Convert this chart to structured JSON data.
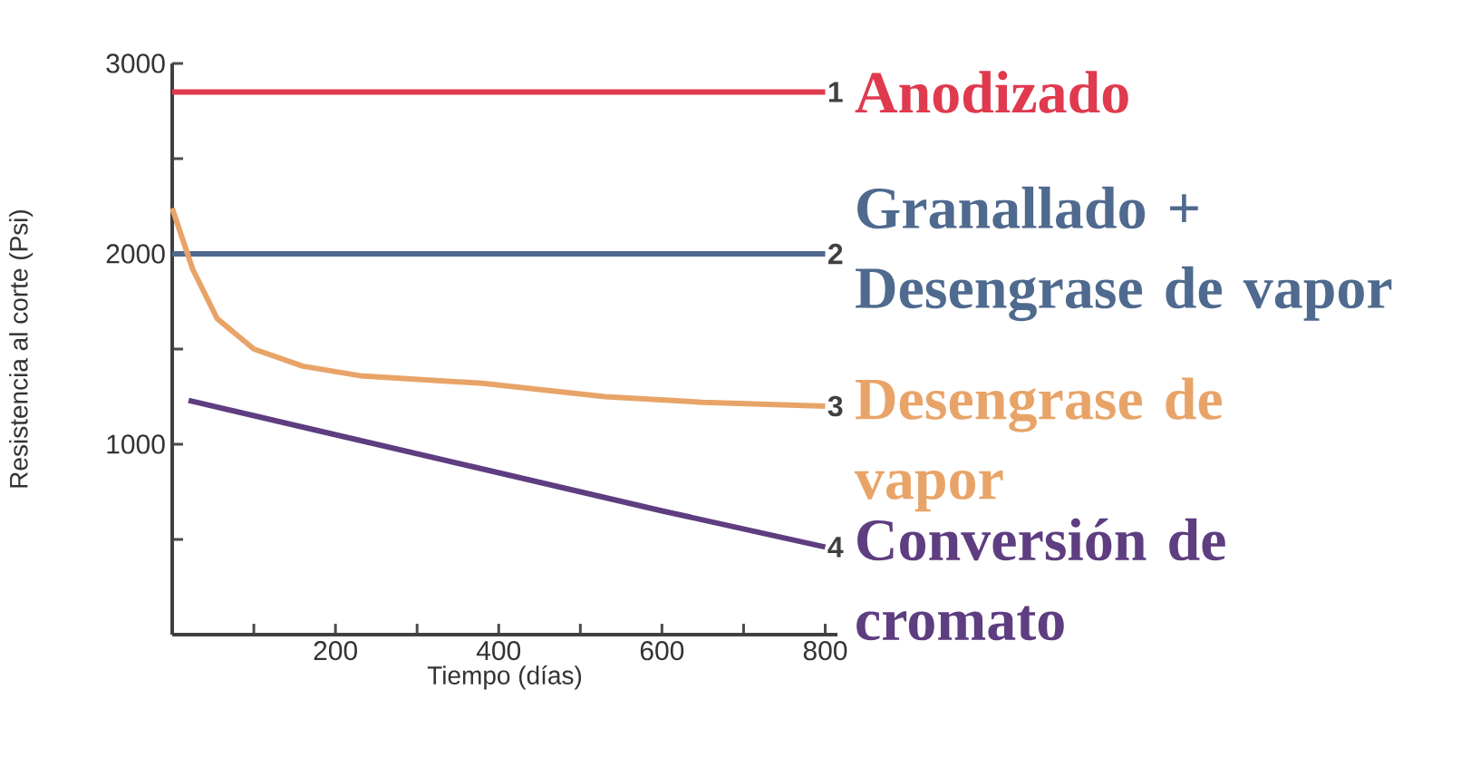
{
  "chart_data": {
    "type": "line",
    "xlabel": "Tiempo (días)",
    "ylabel": "Resistencia al corte (Psi)",
    "xlim": [
      0,
      815
    ],
    "ylim": [
      0,
      3000
    ],
    "xticks": [
      {
        "value": 100,
        "label": null
      },
      200,
      {
        "value": 300,
        "label": null
      },
      400,
      {
        "value": 500,
        "label": null
      },
      600,
      {
        "value": 700,
        "label": null
      },
      800
    ],
    "yticks": [
      {
        "value": 500,
        "label": null
      },
      1000,
      {
        "value": 1500,
        "label": null
      },
      2000,
      {
        "value": 2500,
        "label": null
      },
      3000
    ],
    "series": [
      {
        "name": "Anodizado",
        "color": "#e03a4e",
        "x": [
          0,
          800
        ],
        "values": [
          2850,
          2850
        ]
      },
      {
        "name": "Granallado + Desengrase de vapor",
        "color": "#4f6a8e",
        "x": [
          0,
          800
        ],
        "values": [
          2000,
          2000
        ]
      },
      {
        "name": "Desengrase de vapor",
        "color": "#e8a468",
        "x": [
          0,
          25,
          55,
          100,
          160,
          230,
          380,
          530,
          650,
          800
        ],
        "values": [
          2240,
          1920,
          1660,
          1500,
          1410,
          1360,
          1320,
          1250,
          1220,
          1200
        ]
      },
      {
        "name": "Conversión de cromato",
        "color": "#5e3d80",
        "x": [
          20,
          200,
          380,
          600,
          800
        ],
        "values": [
          1230,
          1050,
          870,
          650,
          460
        ]
      }
    ],
    "annotations": [
      "1",
      "2",
      "3",
      "4"
    ]
  }
}
